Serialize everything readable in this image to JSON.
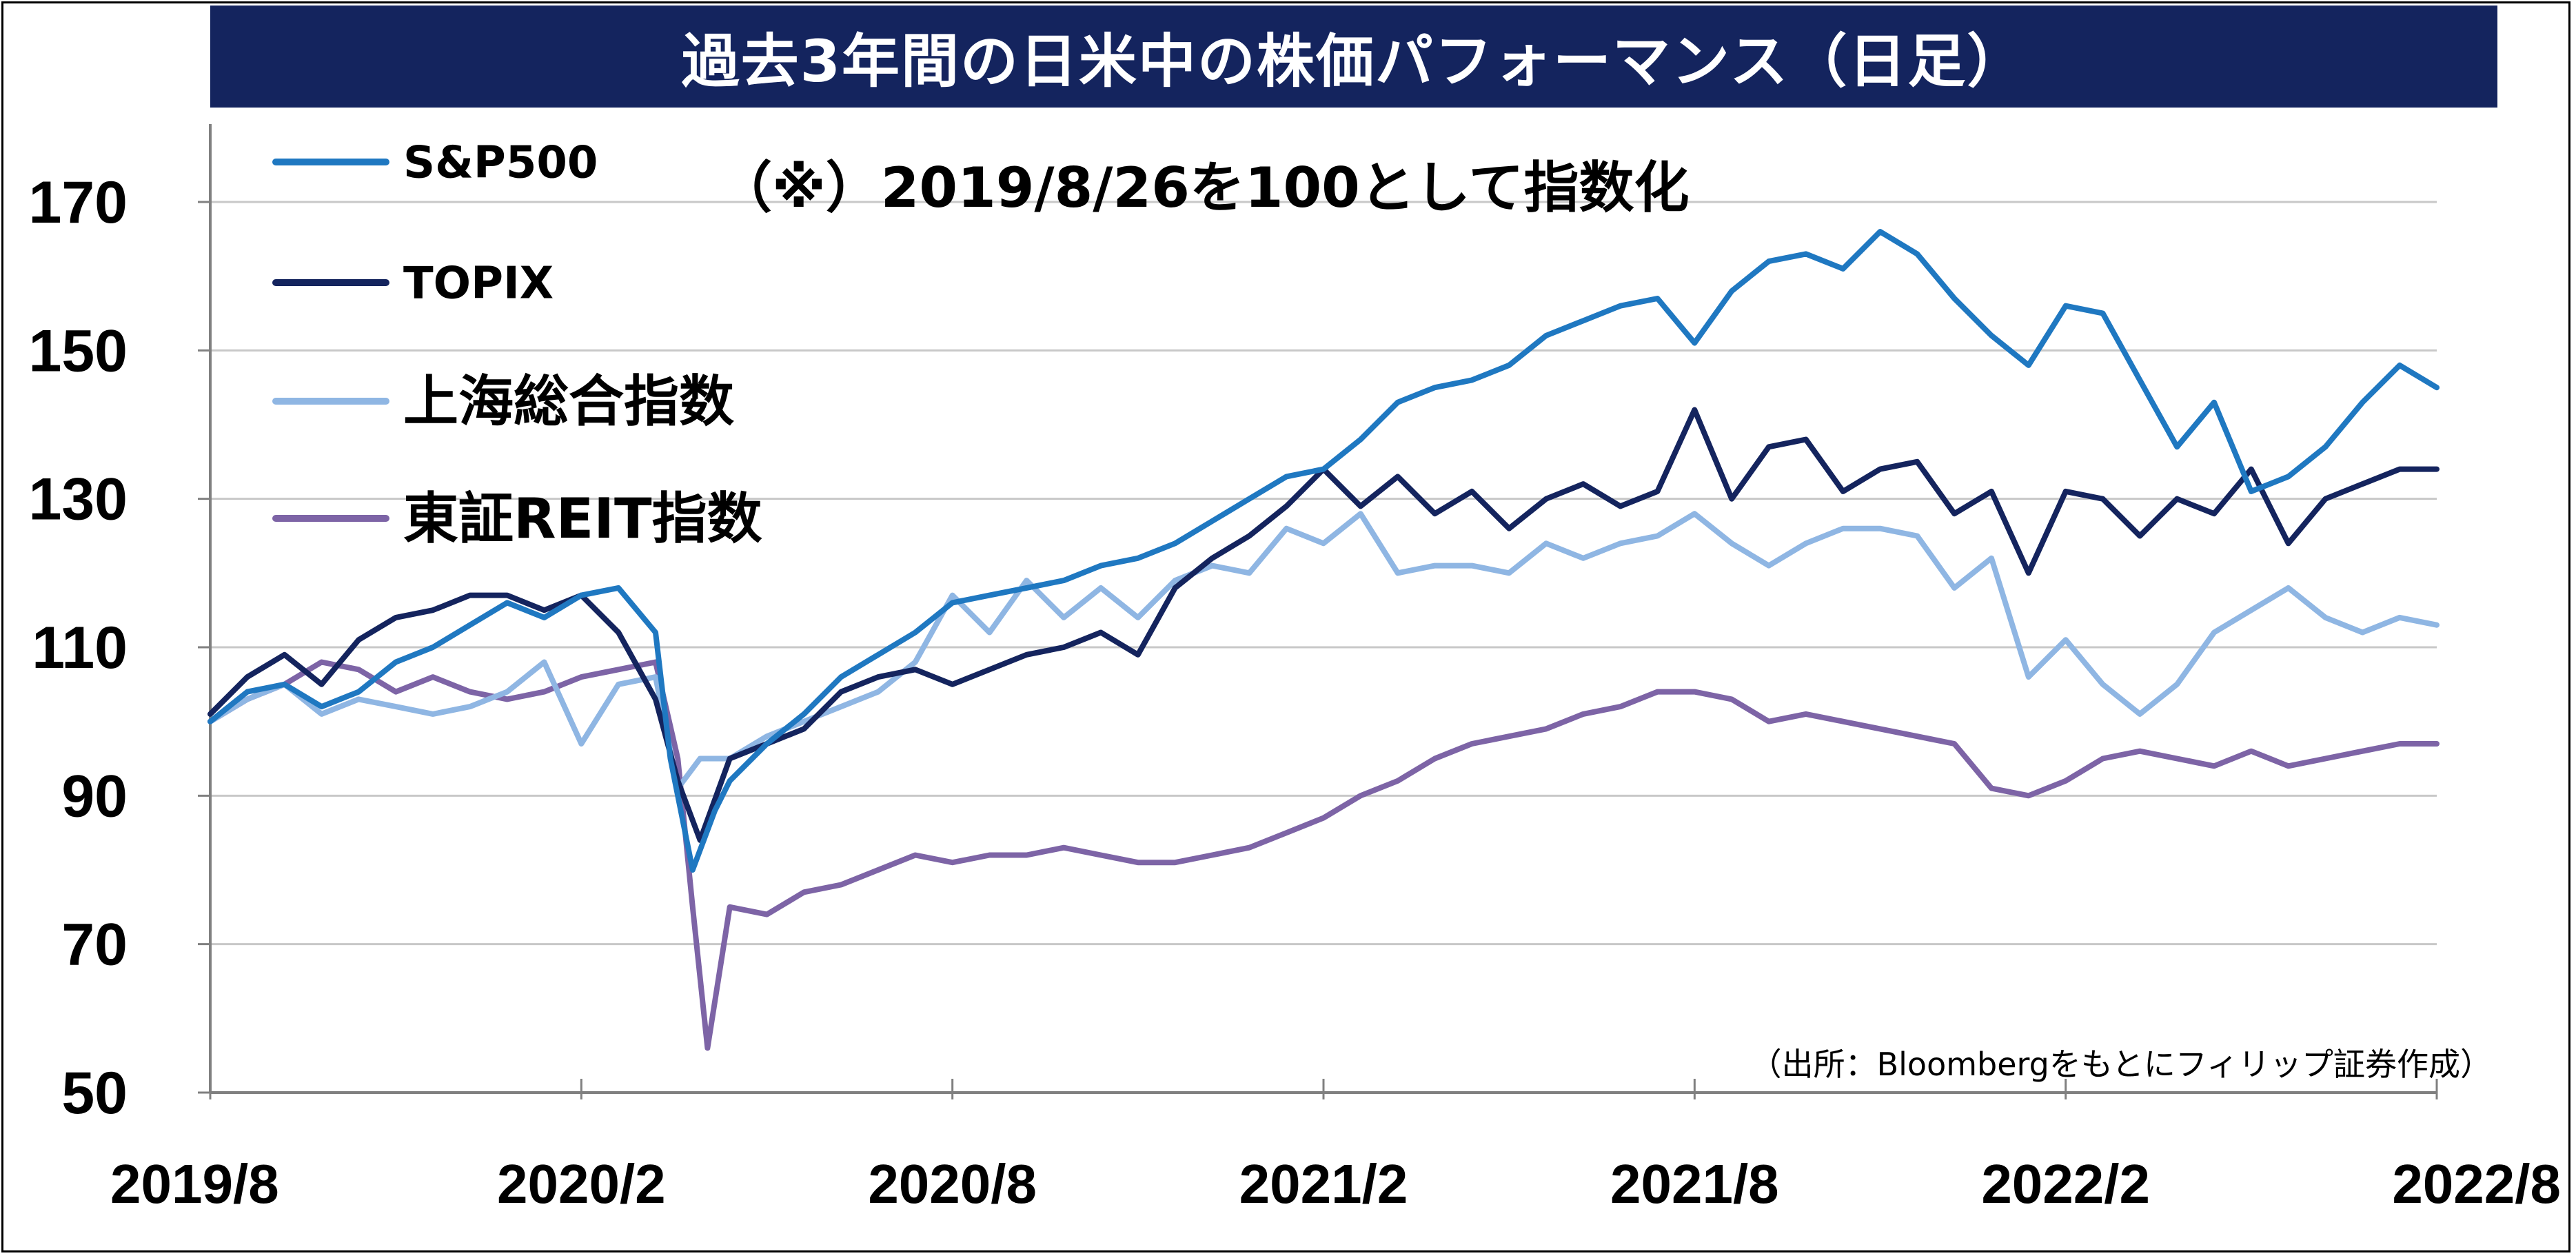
{
  "title": "過去3年間の日米中の株価パフォーマンス（日足）",
  "note": "（※）2019/8/26を100として指数化",
  "source": "（出所：Bloombergをもとにフィリップ証券作成）",
  "chart_data": {
    "type": "line",
    "x_ticks": [
      "2019/8",
      "2020/2",
      "2020/8",
      "2021/2",
      "2021/8",
      "2022/2",
      "2022/8"
    ],
    "y_ticks": [
      50,
      70,
      90,
      110,
      130,
      150,
      170
    ],
    "ylim": [
      50,
      175
    ],
    "grid": "horizontal",
    "legend_position": "top-left",
    "series": [
      {
        "name": "S&P500",
        "color": "#1f78c1",
        "values": [
          [
            0,
            100
          ],
          [
            0.5,
            104
          ],
          [
            1,
            105
          ],
          [
            1.5,
            102
          ],
          [
            2,
            104
          ],
          [
            2.5,
            108
          ],
          [
            3,
            110
          ],
          [
            3.5,
            113
          ],
          [
            4,
            116
          ],
          [
            4.5,
            114
          ],
          [
            5,
            117
          ],
          [
            5.5,
            118
          ],
          [
            6,
            112
          ],
          [
            6.2,
            95
          ],
          [
            6.5,
            80
          ],
          [
            6.8,
            88
          ],
          [
            7,
            92
          ],
          [
            7.5,
            97
          ],
          [
            8,
            101
          ],
          [
            8.5,
            106
          ],
          [
            9,
            109
          ],
          [
            9.5,
            112
          ],
          [
            10,
            116
          ],
          [
            10.5,
            117
          ],
          [
            11,
            118
          ],
          [
            11.5,
            119
          ],
          [
            12,
            121
          ],
          [
            12.5,
            122
          ],
          [
            13,
            124
          ],
          [
            13.5,
            127
          ],
          [
            14,
            130
          ],
          [
            14.5,
            133
          ],
          [
            15,
            134
          ],
          [
            15.5,
            138
          ],
          [
            16,
            143
          ],
          [
            16.5,
            145
          ],
          [
            17,
            146
          ],
          [
            17.5,
            148
          ],
          [
            18,
            152
          ],
          [
            18.5,
            154
          ],
          [
            19,
            156
          ],
          [
            19.5,
            157
          ],
          [
            20,
            151
          ],
          [
            20.5,
            158
          ],
          [
            21,
            162
          ],
          [
            21.5,
            163
          ],
          [
            22,
            161
          ],
          [
            22.5,
            166
          ],
          [
            23,
            163
          ],
          [
            23.5,
            157
          ],
          [
            24,
            152
          ],
          [
            24.5,
            148
          ],
          [
            25,
            156
          ],
          [
            25.5,
            155
          ],
          [
            26,
            146
          ],
          [
            26.5,
            137
          ],
          [
            27,
            143
          ],
          [
            27.5,
            131
          ],
          [
            28,
            133
          ],
          [
            28.5,
            137
          ],
          [
            29,
            143
          ],
          [
            29.5,
            148
          ],
          [
            30,
            145
          ]
        ]
      },
      {
        "name": "TOPIX",
        "color": "#14245e",
        "values": [
          [
            0,
            101
          ],
          [
            0.5,
            106
          ],
          [
            1,
            109
          ],
          [
            1.5,
            105
          ],
          [
            2,
            111
          ],
          [
            2.5,
            114
          ],
          [
            3,
            115
          ],
          [
            3.5,
            117
          ],
          [
            4,
            117
          ],
          [
            4.5,
            115
          ],
          [
            5,
            117
          ],
          [
            5.5,
            112
          ],
          [
            6,
            103
          ],
          [
            6.3,
            92
          ],
          [
            6.6,
            84
          ],
          [
            7,
            95
          ],
          [
            7.5,
            97
          ],
          [
            8,
            99
          ],
          [
            8.5,
            104
          ],
          [
            9,
            106
          ],
          [
            9.5,
            107
          ],
          [
            10,
            105
          ],
          [
            10.5,
            107
          ],
          [
            11,
            109
          ],
          [
            11.5,
            110
          ],
          [
            12,
            112
          ],
          [
            12.5,
            109
          ],
          [
            13,
            118
          ],
          [
            13.5,
            122
          ],
          [
            14,
            125
          ],
          [
            14.5,
            129
          ],
          [
            15,
            134
          ],
          [
            15.5,
            129
          ],
          [
            16,
            133
          ],
          [
            16.5,
            128
          ],
          [
            17,
            131
          ],
          [
            17.5,
            126
          ],
          [
            18,
            130
          ],
          [
            18.5,
            132
          ],
          [
            19,
            129
          ],
          [
            19.5,
            131
          ],
          [
            20,
            142
          ],
          [
            20.5,
            130
          ],
          [
            21,
            137
          ],
          [
            21.5,
            138
          ],
          [
            22,
            131
          ],
          [
            22.5,
            134
          ],
          [
            23,
            135
          ],
          [
            23.5,
            128
          ],
          [
            24,
            131
          ],
          [
            24.5,
            120
          ],
          [
            25,
            131
          ],
          [
            25.5,
            130
          ],
          [
            26,
            125
          ],
          [
            26.5,
            130
          ],
          [
            27,
            128
          ],
          [
            27.5,
            134
          ],
          [
            28,
            124
          ],
          [
            28.5,
            130
          ],
          [
            29,
            132
          ],
          [
            29.5,
            134
          ],
          [
            30,
            134
          ]
        ]
      },
      {
        "name": "上海総合指数",
        "color": "#8fb6e3",
        "values": [
          [
            0,
            100
          ],
          [
            0.5,
            103
          ],
          [
            1,
            105
          ],
          [
            1.5,
            101
          ],
          [
            2,
            103
          ],
          [
            2.5,
            102
          ],
          [
            3,
            101
          ],
          [
            3.5,
            102
          ],
          [
            4,
            104
          ],
          [
            4.5,
            108
          ],
          [
            5,
            97
          ],
          [
            5.5,
            105
          ],
          [
            6,
            106
          ],
          [
            6.3,
            91
          ],
          [
            6.6,
            95
          ],
          [
            7,
            95
          ],
          [
            7.5,
            98
          ],
          [
            8,
            100
          ],
          [
            8.5,
            102
          ],
          [
            9,
            104
          ],
          [
            9.5,
            108
          ],
          [
            10,
            117
          ],
          [
            10.5,
            112
          ],
          [
            11,
            119
          ],
          [
            11.5,
            114
          ],
          [
            12,
            118
          ],
          [
            12.5,
            114
          ],
          [
            13,
            119
          ],
          [
            13.5,
            121
          ],
          [
            14,
            120
          ],
          [
            14.5,
            126
          ],
          [
            15,
            124
          ],
          [
            15.5,
            128
          ],
          [
            16,
            120
          ],
          [
            16.5,
            121
          ],
          [
            17,
            121
          ],
          [
            17.5,
            120
          ],
          [
            18,
            124
          ],
          [
            18.5,
            122
          ],
          [
            19,
            124
          ],
          [
            19.5,
            125
          ],
          [
            20,
            128
          ],
          [
            20.5,
            124
          ],
          [
            21,
            121
          ],
          [
            21.5,
            124
          ],
          [
            22,
            126
          ],
          [
            22.5,
            126
          ],
          [
            23,
            125
          ],
          [
            23.5,
            118
          ],
          [
            24,
            122
          ],
          [
            24.5,
            106
          ],
          [
            25,
            111
          ],
          [
            25.5,
            105
          ],
          [
            26,
            101
          ],
          [
            26.5,
            105
          ],
          [
            27,
            112
          ],
          [
            27.5,
            115
          ],
          [
            28,
            118
          ],
          [
            28.5,
            114
          ],
          [
            29,
            112
          ],
          [
            29.5,
            114
          ],
          [
            30,
            113
          ]
        ]
      },
      {
        "name": "東証REIT指数",
        "color": "#7d64a6",
        "values": [
          [
            0,
            100
          ],
          [
            0.5,
            103
          ],
          [
            1,
            105
          ],
          [
            1.5,
            108
          ],
          [
            2,
            107
          ],
          [
            2.5,
            104
          ],
          [
            3,
            106
          ],
          [
            3.5,
            104
          ],
          [
            4,
            103
          ],
          [
            4.5,
            104
          ],
          [
            5,
            106
          ],
          [
            5.5,
            107
          ],
          [
            6,
            108
          ],
          [
            6.3,
            95
          ],
          [
            6.5,
            75
          ],
          [
            6.7,
            56
          ],
          [
            7,
            75
          ],
          [
            7.5,
            74
          ],
          [
            8,
            77
          ],
          [
            8.5,
            78
          ],
          [
            9,
            80
          ],
          [
            9.5,
            82
          ],
          [
            10,
            81
          ],
          [
            10.5,
            82
          ],
          [
            11,
            82
          ],
          [
            11.5,
            83
          ],
          [
            12,
            82
          ],
          [
            12.5,
            81
          ],
          [
            13,
            81
          ],
          [
            13.5,
            82
          ],
          [
            14,
            83
          ],
          [
            14.5,
            85
          ],
          [
            15,
            87
          ],
          [
            15.5,
            90
          ],
          [
            16,
            92
          ],
          [
            16.5,
            95
          ],
          [
            17,
            97
          ],
          [
            17.5,
            98
          ],
          [
            18,
            99
          ],
          [
            18.5,
            101
          ],
          [
            19,
            102
          ],
          [
            19.5,
            104
          ],
          [
            20,
            104
          ],
          [
            20.5,
            103
          ],
          [
            21,
            100
          ],
          [
            21.5,
            101
          ],
          [
            22,
            100
          ],
          [
            22.5,
            99
          ],
          [
            23,
            98
          ],
          [
            23.5,
            97
          ],
          [
            24,
            91
          ],
          [
            24.5,
            90
          ],
          [
            25,
            92
          ],
          [
            25.5,
            95
          ],
          [
            26,
            96
          ],
          [
            26.5,
            95
          ],
          [
            27,
            94
          ],
          [
            27.5,
            96
          ],
          [
            28,
            94
          ],
          [
            28.5,
            95
          ],
          [
            29,
            96
          ],
          [
            29.5,
            97
          ],
          [
            30,
            97
          ]
        ]
      }
    ]
  }
}
